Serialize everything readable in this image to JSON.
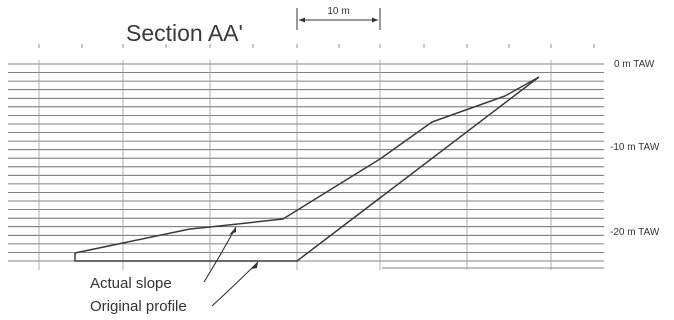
{
  "title": "Section AA'",
  "scale_bar": {
    "label": "10 m"
  },
  "depth_labels": [
    "0 m TAW",
    "-10 m TAW",
    "-20 m TAW"
  ],
  "annotations": {
    "actual_slope": "Actual slope",
    "original_profile": "Original profile"
  },
  "colors": {
    "line": "#3a3a3a",
    "grid": "#5a5a5a",
    "background": "#ffffff"
  }
}
